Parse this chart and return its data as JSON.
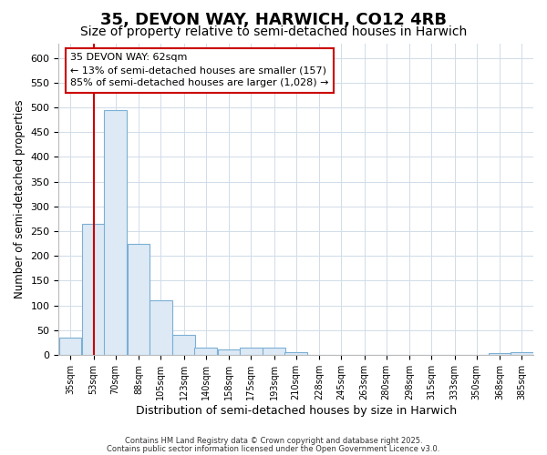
{
  "title": "35, DEVON WAY, HARWICH, CO12 4RB",
  "subtitle": "Size of property relative to semi-detached houses in Harwich",
  "xlabel": "Distribution of semi-detached houses by size in Harwich",
  "ylabel": "Number of semi-detached properties",
  "bin_labels": [
    "35sqm",
    "53sqm",
    "70sqm",
    "88sqm",
    "105sqm",
    "123sqm",
    "140sqm",
    "158sqm",
    "175sqm",
    "193sqm",
    "210sqm",
    "228sqm",
    "245sqm",
    "263sqm",
    "280sqm",
    "298sqm",
    "315sqm",
    "333sqm",
    "350sqm",
    "368sqm",
    "385sqm"
  ],
  "bin_edges": [
    35,
    53,
    70,
    88,
    105,
    123,
    140,
    158,
    175,
    193,
    210,
    228,
    245,
    263,
    280,
    298,
    315,
    333,
    350,
    368,
    385
  ],
  "bar_heights": [
    35,
    265,
    495,
    225,
    110,
    40,
    15,
    10,
    15,
    15,
    6,
    0,
    0,
    0,
    0,
    0,
    0,
    0,
    0,
    3,
    5
  ],
  "bar_color": "#ddeaf6",
  "bar_edge_color": "#7bafd4",
  "vline_x": 62,
  "vline_color": "#cc0000",
  "ylim": [
    0,
    630
  ],
  "annotation_line1": "35 DEVON WAY: 62sqm",
  "annotation_line2": "← 13% of semi-detached houses are smaller (157)",
  "annotation_line3": "85% of semi-detached houses are larger (1,028) →",
  "annotation_box_color": "#cc0000",
  "footer_line1": "Contains HM Land Registry data © Crown copyright and database right 2025.",
  "footer_line2": "Contains public sector information licensed under the Open Government Licence v3.0.",
  "bg_color": "#ffffff",
  "grid_color": "#d0dce8",
  "title_fontsize": 13,
  "subtitle_fontsize": 10
}
